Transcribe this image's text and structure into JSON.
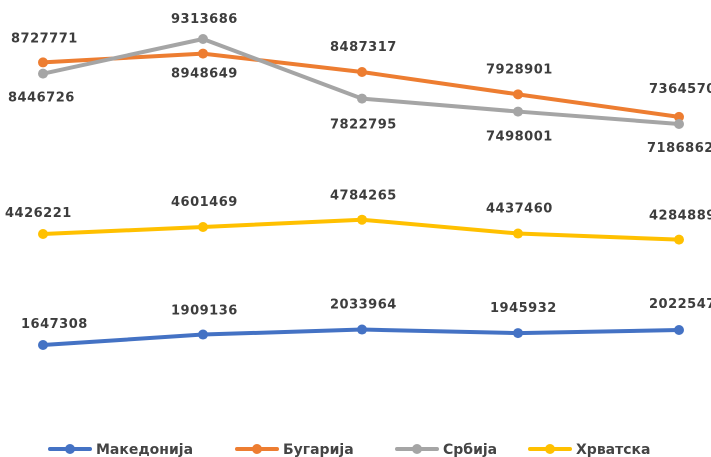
{
  "chart_data": {
    "type": "line",
    "categories": [
      "",
      "",
      "",
      "",
      ""
    ],
    "series": [
      {
        "name": "Македонија",
        "values": [
          1647308,
          1909136,
          2033964,
          1945932,
          2022547
        ],
        "color": "#4472c4"
      },
      {
        "name": "Бугарија",
        "values": [
          8727771,
          8948649,
          8487317,
          7928901,
          7364570
        ],
        "color": "#ed7d31"
      },
      {
        "name": "Србија",
        "values": [
          8446726,
          9313686,
          7822795,
          7498001,
          7186862
        ],
        "color": "#a5a5a5"
      },
      {
        "name": "Хрватска",
        "values": [
          4426221,
          4601469,
          4784265,
          4437460,
          4284889
        ],
        "color": "#ffc000"
      }
    ],
    "data_labels": [
      [
        "1647308",
        "1909136",
        "2033964",
        "1945932",
        "2022547"
      ],
      [
        "8727771",
        "8948649",
        "8487317",
        "7928901",
        "7364570"
      ],
      [
        "8446726",
        "9313686",
        "7822795",
        "7498001",
        "7186862"
      ],
      [
        "4426221",
        "4601469",
        "4784265",
        "4437460",
        "4284889"
      ]
    ],
    "legend_position": "bottom",
    "grid": false,
    "axes_visible": false
  }
}
